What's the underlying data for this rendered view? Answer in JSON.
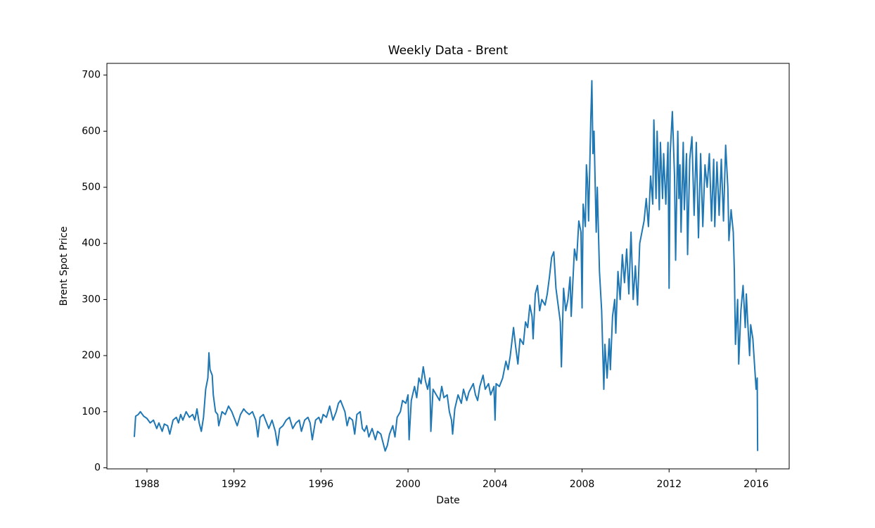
{
  "chart_data": {
    "type": "line",
    "title": "Weekly Data - Brent",
    "x_label": "Date",
    "y_label": "Brent Spot Price",
    "color": "#1f77b4",
    "xlim": [
      1986.16,
      2017.52
    ],
    "xticks": [
      1988,
      1992,
      1996,
      2000,
      2004,
      2008,
      2012,
      2016
    ],
    "ylim": [
      -1.9,
      720.9
    ],
    "yticks": [
      0,
      100,
      200,
      300,
      400,
      500,
      600,
      700
    ],
    "x": [
      1987.42,
      1987.48,
      1987.6,
      1987.7,
      1987.85,
      1988.0,
      1988.15,
      1988.3,
      1988.45,
      1988.55,
      1988.7,
      1988.8,
      1988.95,
      1989.05,
      1989.2,
      1989.35,
      1989.45,
      1989.55,
      1989.65,
      1989.8,
      1989.95,
      1990.1,
      1990.2,
      1990.3,
      1990.4,
      1990.5,
      1990.6,
      1990.7,
      1990.8,
      1990.85,
      1990.9,
      1991.0,
      1991.05,
      1991.15,
      1991.25,
      1991.3,
      1991.45,
      1991.6,
      1991.75,
      1991.9,
      1992.0,
      1992.15,
      1992.3,
      1992.45,
      1992.55,
      1992.7,
      1992.85,
      1993.0,
      1993.1,
      1993.2,
      1993.35,
      1993.5,
      1993.6,
      1993.75,
      1993.9,
      1994.0,
      1994.1,
      1994.25,
      1994.4,
      1994.55,
      1994.7,
      1994.85,
      1995.0,
      1995.1,
      1995.25,
      1995.4,
      1995.5,
      1995.6,
      1995.75,
      1995.9,
      1996.0,
      1996.1,
      1996.25,
      1996.4,
      1996.55,
      1996.7,
      1996.8,
      1996.9,
      1997.0,
      1997.1,
      1997.2,
      1997.3,
      1997.45,
      1997.55,
      1997.65,
      1997.8,
      1997.9,
      1998.0,
      1998.1,
      1998.2,
      1998.35,
      1998.5,
      1998.6,
      1998.75,
      1998.85,
      1998.95,
      1999.05,
      1999.15,
      1999.3,
      1999.4,
      1999.5,
      1999.65,
      1999.75,
      1999.9,
      2000.0,
      2000.05,
      2000.15,
      2000.3,
      2000.4,
      2000.5,
      2000.6,
      2000.7,
      2000.8,
      2000.9,
      2001.0,
      2001.05,
      2001.15,
      2001.3,
      2001.45,
      2001.55,
      2001.65,
      2001.8,
      2001.9,
      2002.0,
      2002.05,
      2002.15,
      2002.3,
      2002.45,
      2002.55,
      2002.7,
      2002.8,
      2003.0,
      2003.1,
      2003.2,
      2003.3,
      2003.45,
      2003.55,
      2003.7,
      2003.8,
      2003.95,
      2004.0,
      2004.05,
      2004.2,
      2004.35,
      2004.5,
      2004.6,
      2004.7,
      2004.85,
      2004.95,
      2005.05,
      2005.15,
      2005.3,
      2005.4,
      2005.5,
      2005.6,
      2005.7,
      2005.75,
      2005.85,
      2005.95,
      2006.05,
      2006.15,
      2006.3,
      2006.4,
      2006.5,
      2006.6,
      2006.7,
      2006.8,
      2006.9,
      2007.0,
      2007.05,
      2007.15,
      2007.25,
      2007.35,
      2007.45,
      2007.5,
      2007.6,
      2007.65,
      2007.75,
      2007.85,
      2007.95,
      2008.0,
      2008.05,
      2008.15,
      2008.2,
      2008.25,
      2008.3,
      2008.4,
      2008.45,
      2008.5,
      2008.55,
      2008.65,
      2008.7,
      2008.8,
      2008.9,
      2009.0,
      2009.05,
      2009.15,
      2009.25,
      2009.3,
      2009.4,
      2009.5,
      2009.55,
      2009.65,
      2009.75,
      2009.85,
      2009.95,
      2010.05,
      2010.15,
      2010.25,
      2010.35,
      2010.45,
      2010.55,
      2010.65,
      2010.75,
      2010.85,
      2010.95,
      2011.05,
      2011.15,
      2011.25,
      2011.3,
      2011.4,
      2011.45,
      2011.55,
      2011.6,
      2011.7,
      2011.75,
      2011.85,
      2011.95,
      2012.0,
      2012.05,
      2012.15,
      2012.25,
      2012.3,
      2012.4,
      2012.45,
      2012.5,
      2012.55,
      2012.65,
      2012.7,
      2012.8,
      2012.85,
      2012.95,
      2013.05,
      2013.15,
      2013.25,
      2013.35,
      2013.45,
      2013.55,
      2013.65,
      2013.75,
      2013.85,
      2013.95,
      2014.05,
      2014.1,
      2014.2,
      2014.3,
      2014.4,
      2014.5,
      2014.6,
      2014.7,
      2014.75,
      2014.85,
      2014.95,
      2015.0,
      2015.05,
      2015.15,
      2015.2,
      2015.3,
      2015.4,
      2015.5,
      2015.55,
      2015.6,
      2015.7,
      2015.75,
      2015.85,
      2015.95,
      2016.0,
      2016.05,
      2016.07
    ],
    "values": [
      55,
      92,
      95,
      100,
      92,
      88,
      80,
      85,
      70,
      80,
      65,
      78,
      75,
      60,
      85,
      90,
      80,
      95,
      85,
      100,
      90,
      95,
      85,
      105,
      80,
      65,
      90,
      140,
      160,
      205,
      175,
      165,
      130,
      100,
      95,
      75,
      100,
      95,
      110,
      100,
      90,
      75,
      95,
      105,
      100,
      95,
      100,
      85,
      55,
      90,
      95,
      80,
      70,
      85,
      65,
      40,
      70,
      75,
      85,
      90,
      70,
      80,
      85,
      65,
      85,
      90,
      80,
      50,
      85,
      90,
      80,
      95,
      90,
      110,
      85,
      100,
      115,
      120,
      110,
      100,
      75,
      90,
      85,
      60,
      95,
      100,
      70,
      65,
      75,
      55,
      70,
      50,
      65,
      60,
      45,
      30,
      40,
      60,
      75,
      55,
      90,
      100,
      120,
      115,
      130,
      50,
      120,
      145,
      125,
      160,
      150,
      180,
      155,
      140,
      160,
      65,
      140,
      130,
      120,
      145,
      125,
      130,
      100,
      85,
      60,
      105,
      130,
      115,
      140,
      120,
      135,
      150,
      130,
      120,
      145,
      165,
      140,
      150,
      130,
      145,
      85,
      150,
      145,
      160,
      190,
      175,
      200,
      250,
      215,
      185,
      230,
      220,
      260,
      250,
      290,
      270,
      230,
      310,
      325,
      280,
      300,
      290,
      310,
      340,
      375,
      385,
      320,
      290,
      260,
      180,
      320,
      280,
      300,
      340,
      270,
      350,
      390,
      370,
      440,
      420,
      285,
      470,
      430,
      540,
      510,
      440,
      620,
      690,
      560,
      600,
      420,
      500,
      350,
      280,
      140,
      220,
      160,
      230,
      175,
      270,
      300,
      240,
      350,
      300,
      380,
      330,
      390,
      310,
      420,
      300,
      360,
      290,
      400,
      420,
      440,
      480,
      430,
      520,
      470,
      620,
      480,
      600,
      460,
      580,
      480,
      560,
      470,
      580,
      320,
      560,
      635,
      520,
      370,
      600,
      480,
      540,
      420,
      580,
      460,
      560,
      380,
      550,
      590,
      450,
      580,
      410,
      560,
      430,
      540,
      500,
      560,
      440,
      550,
      430,
      545,
      450,
      550,
      440,
      575,
      500,
      405,
      460,
      420,
      350,
      220,
      300,
      185,
      280,
      325,
      250,
      310,
      270,
      200,
      255,
      230,
      170,
      140,
      160,
      30
    ]
  }
}
